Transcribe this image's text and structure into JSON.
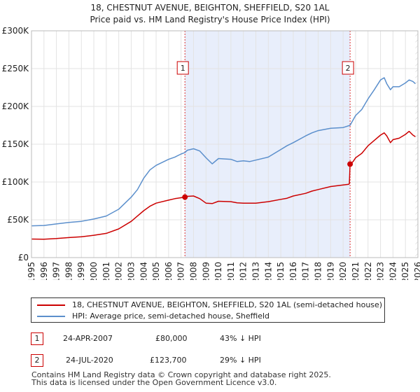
{
  "title_line1": "18, CHESTNUT AVENUE, BEIGHTON, SHEFFIELD, S20 1AL",
  "title_line2": "Price paid vs. HM Land Registry's House Price Index (HPI)",
  "chart_data": {
    "type": "line",
    "xlim": [
      1995,
      2026
    ],
    "ylim": [
      0,
      300000
    ],
    "x_ticks": [
      1995,
      1996,
      1997,
      1998,
      1999,
      2000,
      2001,
      2002,
      2003,
      2004,
      2005,
      2006,
      2007,
      2008,
      2009,
      2010,
      2011,
      2012,
      2013,
      2014,
      2015,
      2016,
      2017,
      2018,
      2019,
      2020,
      2021,
      2022,
      2023,
      2024,
      2025,
      2026
    ],
    "y_ticks": [
      0,
      50000,
      100000,
      150000,
      200000,
      250000,
      300000
    ],
    "y_tick_labels": [
      "£0",
      "£50K",
      "£100K",
      "£150K",
      "£200K",
      "£250K",
      "£300K"
    ],
    "shaded_span": [
      2007.31,
      2020.56
    ],
    "series": [
      {
        "name": "18, CHESTNUT AVENUE, BEIGHTON, SHEFFIELD, S20 1AL (semi-detached house)",
        "color": "#cc0000",
        "points": [
          [
            1995.0,
            24500
          ],
          [
            1996.0,
            24300
          ],
          [
            1997.0,
            25200
          ],
          [
            1998.0,
            26500
          ],
          [
            1999.0,
            27500
          ],
          [
            2000.0,
            29500
          ],
          [
            2001.0,
            32000
          ],
          [
            2002.0,
            38000
          ],
          [
            2003.0,
            48000
          ],
          [
            2003.5,
            55000
          ],
          [
            2004.0,
            62000
          ],
          [
            2004.5,
            68000
          ],
          [
            2005.0,
            72000
          ],
          [
            2006.0,
            76000
          ],
          [
            2006.5,
            78000
          ],
          [
            2007.31,
            80000
          ],
          [
            2007.5,
            81000
          ],
          [
            2008.0,
            81500
          ],
          [
            2008.5,
            78000
          ],
          [
            2009.0,
            72000
          ],
          [
            2009.5,
            71500
          ],
          [
            2010.0,
            74500
          ],
          [
            2011.0,
            74000
          ],
          [
            2011.5,
            72500
          ],
          [
            2012.0,
            72000
          ],
          [
            2012.5,
            72000
          ],
          [
            2013.0,
            72000
          ],
          [
            2014.0,
            74000
          ],
          [
            2015.0,
            77000
          ],
          [
            2015.5,
            78500
          ],
          [
            2016.0,
            81500
          ],
          [
            2017.0,
            85000
          ],
          [
            2017.5,
            88000
          ],
          [
            2018.0,
            90000
          ],
          [
            2019.0,
            94000
          ],
          [
            2020.0,
            96000
          ],
          [
            2020.45,
            97000
          ],
          [
            2020.5,
            98000
          ],
          [
            2020.56,
            123700
          ],
          [
            2020.8,
            127000
          ],
          [
            2021.0,
            132000
          ],
          [
            2021.5,
            138000
          ],
          [
            2022.0,
            148000
          ],
          [
            2022.5,
            155000
          ],
          [
            2023.0,
            162000
          ],
          [
            2023.3,
            165000
          ],
          [
            2023.5,
            161000
          ],
          [
            2023.8,
            152000
          ],
          [
            2024.0,
            156000
          ],
          [
            2024.5,
            158000
          ],
          [
            2025.0,
            163000
          ],
          [
            2025.3,
            167000
          ],
          [
            2025.6,
            162000
          ],
          [
            2025.8,
            160000
          ]
        ]
      },
      {
        "name": "HPI: Average price, semi-detached house, Sheffield",
        "color": "#5b8fcc",
        "points": [
          [
            1995.0,
            42000
          ],
          [
            1996.0,
            42500
          ],
          [
            1997.0,
            44500
          ],
          [
            1998.0,
            46500
          ],
          [
            1999.0,
            48000
          ],
          [
            2000.0,
            51000
          ],
          [
            2001.0,
            55000
          ],
          [
            2002.0,
            64000
          ],
          [
            2003.0,
            80000
          ],
          [
            2003.5,
            90000
          ],
          [
            2004.0,
            105000
          ],
          [
            2004.5,
            116000
          ],
          [
            2005.0,
            122000
          ],
          [
            2006.0,
            130000
          ],
          [
            2006.5,
            133000
          ],
          [
            2007.0,
            137000
          ],
          [
            2007.31,
            139000
          ],
          [
            2007.5,
            142000
          ],
          [
            2008.0,
            144000
          ],
          [
            2008.5,
            141000
          ],
          [
            2009.0,
            132000
          ],
          [
            2009.5,
            124000
          ],
          [
            2010.0,
            131000
          ],
          [
            2011.0,
            130000
          ],
          [
            2011.5,
            127000
          ],
          [
            2012.0,
            128000
          ],
          [
            2012.5,
            127000
          ],
          [
            2013.0,
            129000
          ],
          [
            2014.0,
            133000
          ],
          [
            2015.0,
            143000
          ],
          [
            2015.5,
            148000
          ],
          [
            2016.0,
            152000
          ],
          [
            2017.0,
            161000
          ],
          [
            2017.5,
            165000
          ],
          [
            2018.0,
            168000
          ],
          [
            2019.0,
            171000
          ],
          [
            2020.0,
            172000
          ],
          [
            2020.56,
            175000
          ],
          [
            2021.0,
            188000
          ],
          [
            2021.5,
            196000
          ],
          [
            2022.0,
            210000
          ],
          [
            2022.5,
            222000
          ],
          [
            2023.0,
            235000
          ],
          [
            2023.3,
            238000
          ],
          [
            2023.5,
            230000
          ],
          [
            2023.8,
            222000
          ],
          [
            2024.0,
            226000
          ],
          [
            2024.5,
            226000
          ],
          [
            2025.0,
            231000
          ],
          [
            2025.3,
            235000
          ],
          [
            2025.6,
            233000
          ],
          [
            2025.8,
            230000
          ]
        ]
      }
    ],
    "sales": [
      {
        "label": "1",
        "x": 2007.31,
        "price": 80000
      },
      {
        "label": "2",
        "x": 2020.56,
        "price": 123700
      }
    ]
  },
  "legend": {
    "items": [
      {
        "label": "18, CHESTNUT AVENUE, BEIGHTON, SHEFFIELD, S20 1AL (semi-detached house)",
        "color": "#cc0000"
      },
      {
        "label": "HPI: Average price, semi-detached house, Sheffield",
        "color": "#5b8fcc"
      }
    ]
  },
  "transactions": [
    {
      "num": "1",
      "date": "24-APR-2007",
      "price": "£80,000",
      "hpi": "43% ↓ HPI"
    },
    {
      "num": "2",
      "date": "24-JUL-2020",
      "price": "£123,700",
      "hpi": "29% ↓ HPI"
    }
  ],
  "footer": {
    "line1": "Contains HM Land Registry data © Crown copyright and database right 2025.",
    "line2": "This data is licensed under the Open Government Licence v3.0."
  }
}
